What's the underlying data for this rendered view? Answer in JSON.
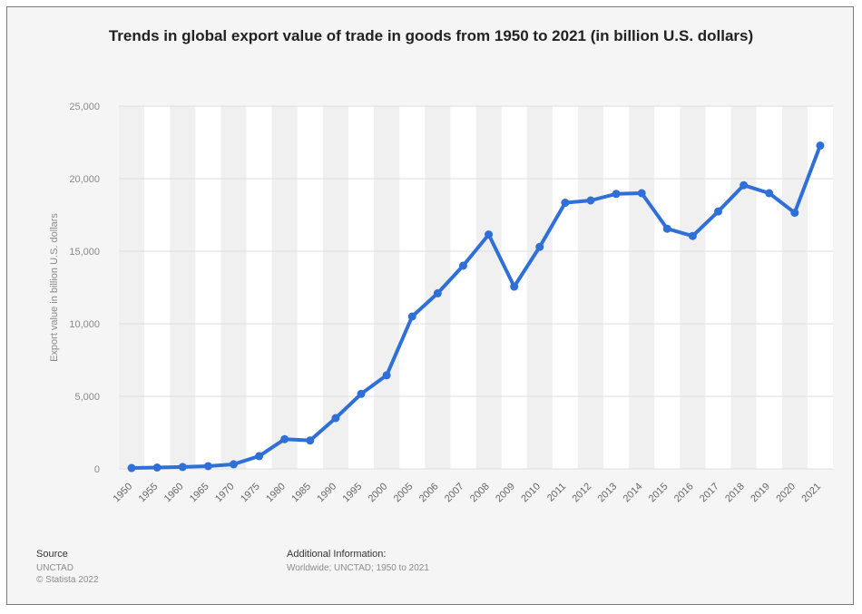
{
  "chart_data": {
    "type": "line",
    "title": "Trends in global export value of trade in goods from 1950 to 2021 (in billion U.S. dollars)",
    "ylabel": "Export value in billion U.S. dollars",
    "xlabel": "",
    "categories": [
      "1950",
      "1955",
      "1960",
      "1965",
      "1970",
      "1975",
      "1980",
      "1985",
      "1990",
      "1995",
      "2000",
      "2005",
      "2006",
      "2007",
      "2008",
      "2009",
      "2010",
      "2011",
      "2012",
      "2013",
      "2014",
      "2015",
      "2016",
      "2017",
      "2018",
      "2019",
      "2020",
      "2021"
    ],
    "values": [
      62,
      94,
      130,
      188,
      318,
      880,
      2050,
      1960,
      3500,
      5170,
      6450,
      10500,
      12100,
      14000,
      16150,
      12560,
      15300,
      18340,
      18500,
      18950,
      19000,
      16550,
      16050,
      17740,
      19550,
      19000,
      17650,
      22280
    ],
    "yticks": [
      "0",
      "5,000",
      "10,000",
      "15,000",
      "20,000",
      "25,000"
    ],
    "ylim": [
      0,
      25000
    ],
    "grid": "horizontal",
    "line_color": "#2f6fd8"
  },
  "footer": {
    "source_label": "Source",
    "source_lines": [
      "UNCTAD",
      "© Statista 2022"
    ],
    "info_label": "Additional Information:",
    "info_text": "Worldwide; UNCTAD; 1950 to 2021"
  }
}
